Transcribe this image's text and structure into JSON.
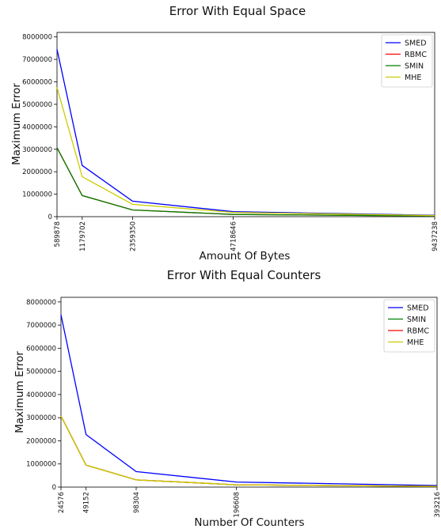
{
  "chart_data": [
    {
      "type": "line",
      "title": "Error With Equal Space",
      "xlabel": "Amount Of Bytes",
      "ylabel": "Maximum Error",
      "x": [
        589878,
        1179702,
        2359350,
        4718646,
        9437238
      ],
      "x_tick_labels": [
        "589878",
        "1179702",
        "2359350",
        "4718646",
        "9437238"
      ],
      "ylim": [
        0,
        8200000
      ],
      "y_ticks": [
        0,
        1000000,
        2000000,
        3000000,
        4000000,
        5000000,
        6000000,
        7000000,
        8000000
      ],
      "y_tick_labels": [
        "0",
        "1000000",
        "2000000",
        "3000000",
        "4000000",
        "5000000",
        "6000000",
        "7000000",
        "8000000"
      ],
      "legend_position": "top-right",
      "grid": false,
      "series": [
        {
          "name": "SMED",
          "color": "#0000ff",
          "values": [
            7450000,
            2280000,
            690000,
            220000,
            60000
          ]
        },
        {
          "name": "RBMC",
          "color": "#ff0000",
          "values": [
            3070000,
            940000,
            300000,
            100000,
            30000
          ]
        },
        {
          "name": "SMIN",
          "color": "#008000",
          "values": [
            3070000,
            940000,
            300000,
            100000,
            30000
          ]
        },
        {
          "name": "MHE",
          "color": "#cccc00",
          "values": [
            5750000,
            1780000,
            550000,
            190000,
            50000
          ]
        }
      ]
    },
    {
      "type": "line",
      "title": "Error With Equal Counters",
      "xlabel": "Number Of Counters",
      "ylabel": "Maximum Error",
      "x": [
        24576,
        49152,
        98304,
        196608,
        393216
      ],
      "x_tick_labels": [
        "24576",
        "49152",
        "98304",
        "196608",
        "393216"
      ],
      "ylim": [
        0,
        8200000
      ],
      "y_ticks": [
        0,
        1000000,
        2000000,
        3000000,
        4000000,
        5000000,
        6000000,
        7000000,
        8000000
      ],
      "y_tick_labels": [
        "0",
        "1000000",
        "2000000",
        "3000000",
        "4000000",
        "5000000",
        "6000000",
        "7000000",
        "8000000"
      ],
      "legend_position": "top-right",
      "grid": false,
      "series": [
        {
          "name": "SMED",
          "color": "#0000ff",
          "values": [
            7450000,
            2270000,
            670000,
            220000,
            70000
          ]
        },
        {
          "name": "SMIN",
          "color": "#008000",
          "values": [
            3070000,
            950000,
            310000,
            100000,
            30000
          ]
        },
        {
          "name": "RBMC",
          "color": "#ff0000",
          "values": [
            3070000,
            950000,
            310000,
            100000,
            30000
          ]
        },
        {
          "name": "MHE",
          "color": "#cccc00",
          "values": [
            3070000,
            950000,
            310000,
            100000,
            30000
          ]
        }
      ]
    }
  ]
}
